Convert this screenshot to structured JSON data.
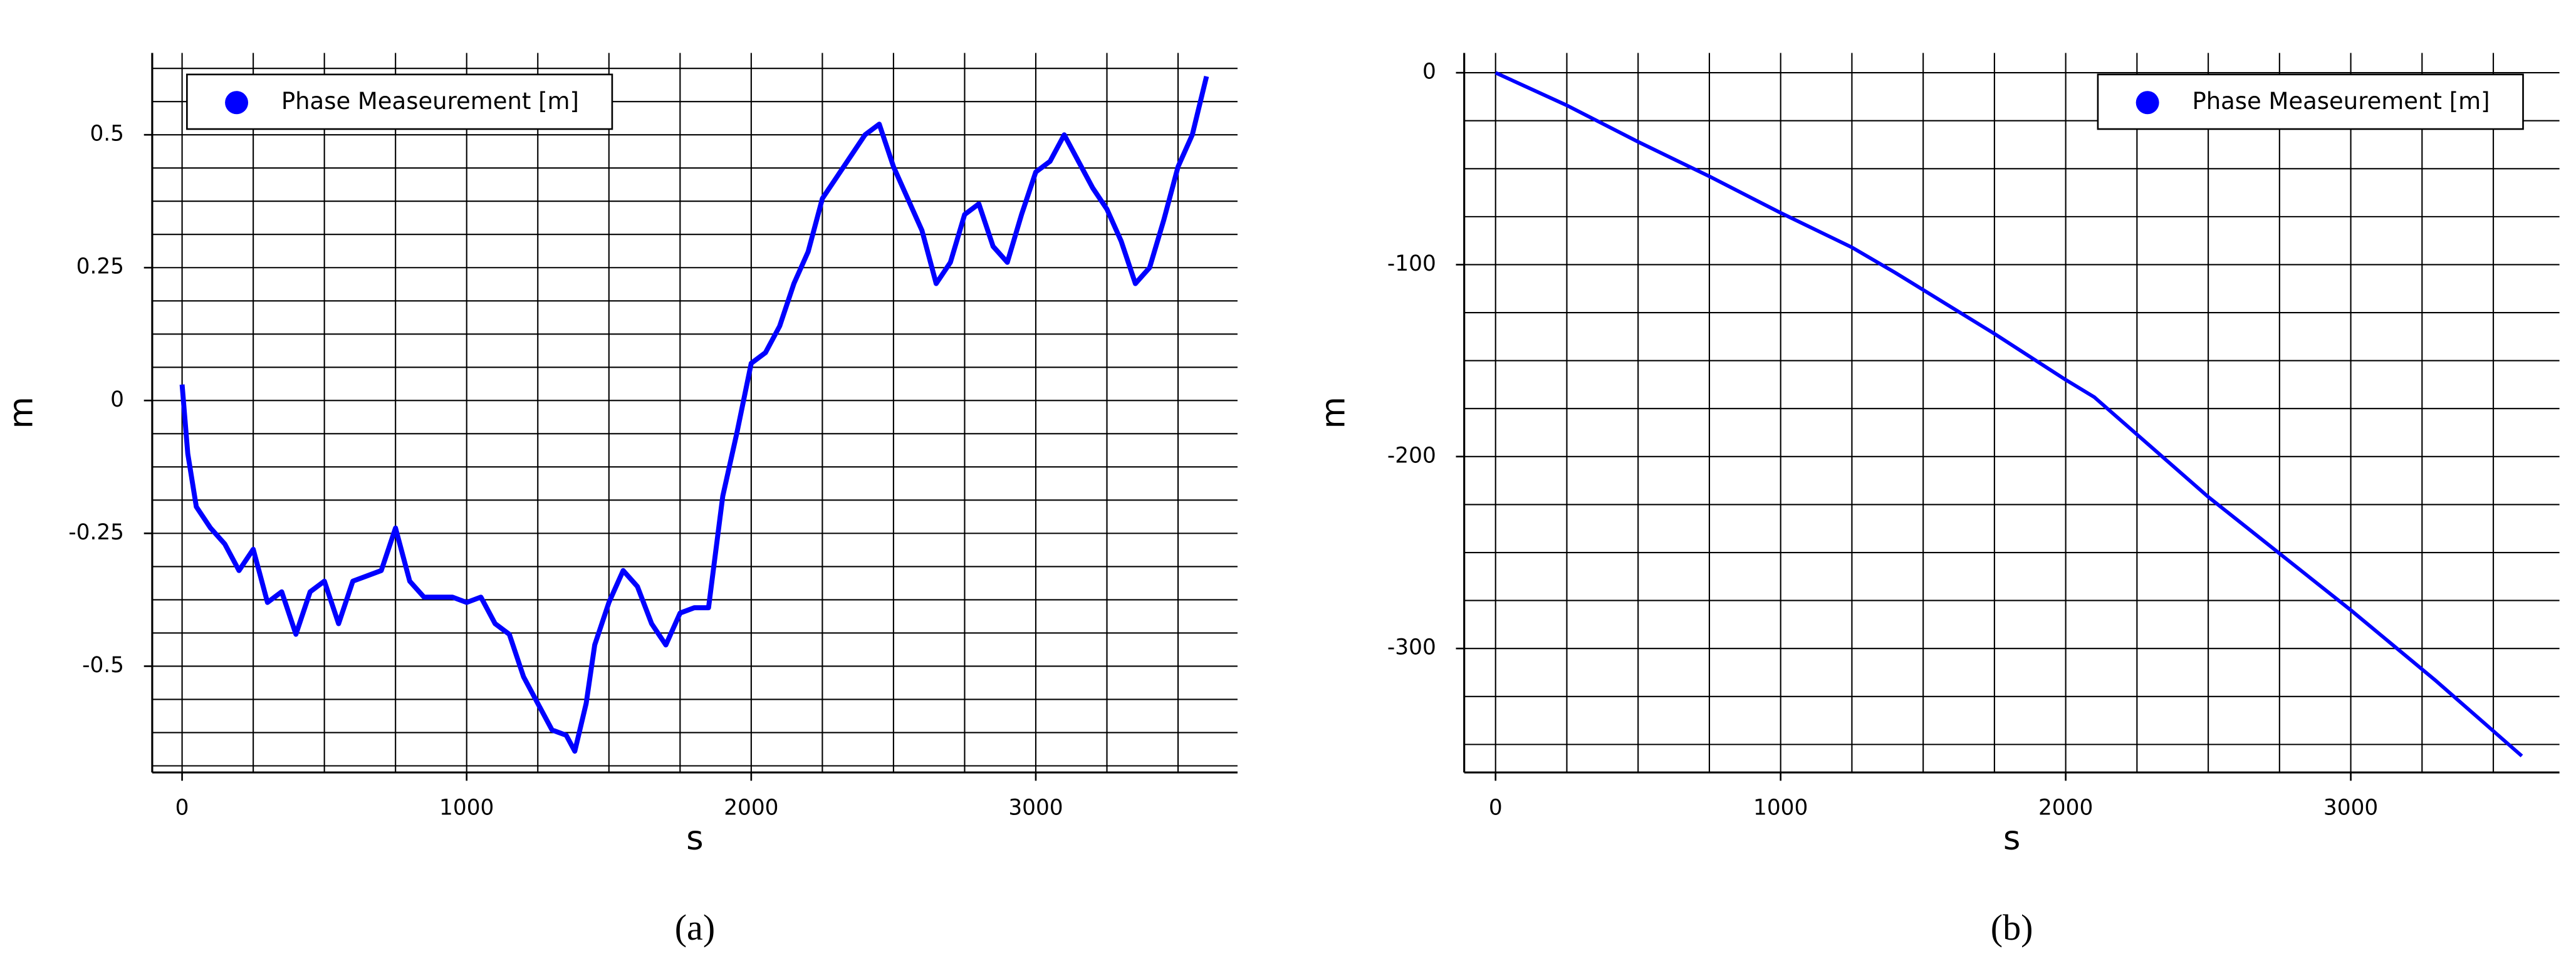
{
  "chart_data": [
    {
      "type": "line",
      "caption": "(a)",
      "xlabel": "s",
      "ylabel": "m",
      "xlim": [
        -105,
        3709
      ],
      "ylim": [
        -0.7,
        0.654
      ],
      "xticks": [
        0,
        1000,
        2000,
        3000
      ],
      "yticks": [
        -0.5,
        -0.25,
        0,
        0.25,
        0.5
      ],
      "xminorticks": [
        0,
        250,
        500,
        750,
        1000,
        1250,
        1500,
        1750,
        2000,
        2250,
        2500,
        2750,
        3000,
        3250,
        3500
      ],
      "yminorticks": [
        -0.6875,
        -0.625,
        -0.5625,
        -0.5,
        -0.4375,
        -0.375,
        -0.3125,
        -0.25,
        -0.1875,
        -0.125,
        -0.0625,
        0,
        0.0625,
        0.125,
        0.1875,
        0.25,
        0.3125,
        0.375,
        0.4375,
        0.5,
        0.5625,
        0.625
      ],
      "grid": true,
      "legend": "upper left",
      "x": [
        0,
        20,
        50,
        100,
        150,
        200,
        250,
        300,
        350,
        400,
        450,
        500,
        550,
        600,
        650,
        700,
        750,
        800,
        850,
        900,
        950,
        1000,
        1050,
        1100,
        1150,
        1200,
        1250,
        1300,
        1350,
        1380,
        1420,
        1450,
        1500,
        1550,
        1600,
        1650,
        1700,
        1750,
        1800,
        1850,
        1900,
        1950,
        2000,
        2050,
        2100,
        2150,
        2200,
        2250,
        2300,
        2350,
        2400,
        2450,
        2500,
        2550,
        2600,
        2650,
        2700,
        2750,
        2800,
        2850,
        2900,
        2950,
        3000,
        3050,
        3100,
        3150,
        3200,
        3250,
        3300,
        3350,
        3400,
        3450,
        3500,
        3550,
        3600
      ],
      "series": [
        {
          "name": "Phase Measeurement [m]",
          "color": "#0000ff",
          "values": [
            0.03,
            -0.1,
            -0.2,
            -0.24,
            -0.27,
            -0.32,
            -0.28,
            -0.38,
            -0.36,
            -0.44,
            -0.36,
            -0.34,
            -0.42,
            -0.34,
            -0.33,
            -0.32,
            -0.24,
            -0.34,
            -0.37,
            -0.37,
            -0.37,
            -0.38,
            -0.37,
            -0.42,
            -0.44,
            -0.52,
            -0.57,
            -0.62,
            -0.63,
            -0.66,
            -0.57,
            -0.46,
            -0.38,
            -0.32,
            -0.35,
            -0.42,
            -0.46,
            -0.4,
            -0.39,
            -0.39,
            -0.18,
            -0.06,
            0.07,
            0.09,
            0.14,
            0.22,
            0.28,
            0.38,
            0.42,
            0.46,
            0.5,
            0.52,
            0.44,
            0.38,
            0.32,
            0.22,
            0.26,
            0.35,
            0.37,
            0.29,
            0.26,
            0.35,
            0.43,
            0.45,
            0.5,
            0.45,
            0.4,
            0.36,
            0.3,
            0.22,
            0.25,
            0.34,
            0.44,
            0.5,
            0.61
          ]
        }
      ]
    },
    {
      "type": "line",
      "caption": "(b)",
      "xlabel": "s",
      "ylabel": "m",
      "xlim": [
        -110,
        3732
      ],
      "ylim": [
        -364.6,
        10.3
      ],
      "xticks": [
        0,
        1000,
        2000,
        3000
      ],
      "yticks": [
        -300,
        -200,
        -100,
        0
      ],
      "xminorticks": [
        0,
        250,
        500,
        750,
        1000,
        1250,
        1500,
        1750,
        2000,
        2250,
        2500,
        2750,
        3000,
        3250,
        3500
      ],
      "yminorticks": [
        -350,
        -325,
        -300,
        -275,
        -250,
        -225,
        -200,
        -175,
        -150,
        -125,
        -100,
        -75,
        -50,
        -25,
        0
      ],
      "grid": true,
      "legend": "upper right",
      "x": [
        0,
        250,
        500,
        750,
        1000,
        1250,
        1400,
        1750,
        2000,
        2100,
        2500,
        3000,
        3300,
        3600
      ],
      "series": [
        {
          "name": "Phase Measeurement [m]",
          "color": "#0000ff",
          "values": [
            0,
            -17,
            -36,
            -54,
            -73,
            -91,
            -104,
            -136,
            -160,
            -169,
            -221,
            -280,
            -317,
            -356
          ]
        }
      ]
    }
  ]
}
